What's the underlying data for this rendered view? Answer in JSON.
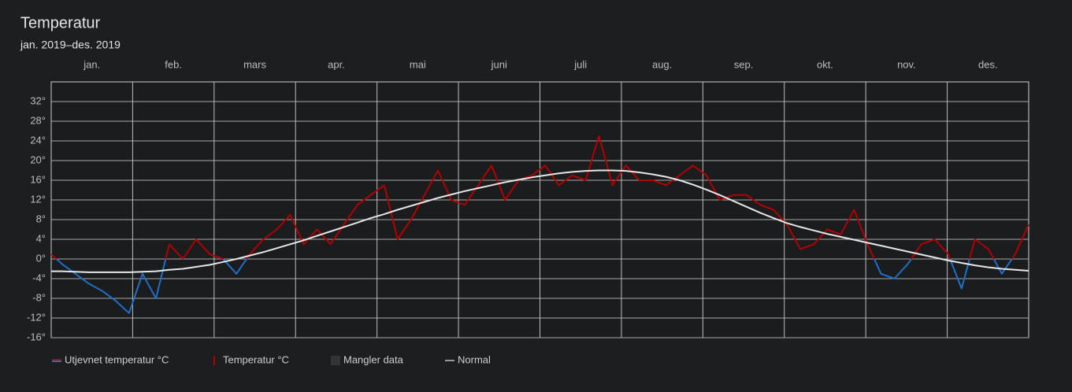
{
  "chart_data": {
    "type": "line",
    "title": "Temperatur",
    "subtitle": "jan. 2019–des. 2019",
    "categories": [
      "jan.",
      "feb.",
      "mars",
      "apr.",
      "mai",
      "juni",
      "juli",
      "aug.",
      "sep.",
      "okt.",
      "nov.",
      "des."
    ],
    "x": [
      1,
      5,
      10,
      15,
      20,
      25,
      30,
      35,
      40,
      45,
      50,
      55,
      60,
      65,
      70,
      75,
      80,
      85,
      90,
      95,
      100,
      105,
      110,
      115,
      120,
      125,
      130,
      135,
      140,
      145,
      150,
      155,
      160,
      165,
      170,
      175,
      180,
      185,
      190,
      195,
      200,
      205,
      210,
      215,
      220,
      225,
      230,
      235,
      240,
      245,
      250,
      255,
      260,
      265,
      270,
      275,
      280,
      285,
      290,
      295,
      300,
      305,
      310,
      315,
      320,
      325,
      330,
      335,
      340,
      345,
      350,
      355,
      360,
      365
    ],
    "xlim": [
      1,
      365
    ],
    "ylim": [
      -16,
      36
    ],
    "yticks": [
      {
        "value": -16,
        "label": "-16°"
      },
      {
        "value": -12,
        "label": "-12°"
      },
      {
        "value": -8,
        "label": "-8°"
      },
      {
        "value": -4,
        "label": "-4°"
      },
      {
        "value": 0,
        "label": "0°"
      },
      {
        "value": 4,
        "label": "4°"
      },
      {
        "value": 8,
        "label": "8°"
      },
      {
        "value": 12,
        "label": "12°"
      },
      {
        "value": 16,
        "label": "16°"
      },
      {
        "value": 20,
        "label": "20°"
      },
      {
        "value": 24,
        "label": "24°"
      },
      {
        "value": 28,
        "label": "28°"
      },
      {
        "value": 32,
        "label": "32°"
      }
    ],
    "grid": true,
    "series": [
      {
        "name": "Utjevnet temperatur °C",
        "color": "#b30000",
        "negative_color": "#1e6fc8",
        "values": [
          1,
          -1,
          -3,
          -5,
          -6.5,
          -8.5,
          -11,
          -3,
          -8,
          3,
          0,
          4,
          1,
          0,
          -3,
          1,
          4,
          6,
          9,
          3,
          6,
          3,
          7,
          11,
          13,
          15,
          4,
          8,
          13,
          18,
          12,
          11,
          15,
          19,
          12,
          16,
          17,
          19,
          15,
          17,
          16,
          25,
          15,
          19,
          16,
          16,
          15,
          17,
          19,
          17,
          12,
          13,
          13,
          11,
          10,
          7,
          2,
          3,
          6,
          5,
          10,
          3,
          -3,
          -4,
          -1,
          3,
          4,
          1,
          -6,
          4,
          2,
          -3,
          1,
          7
        ]
      },
      {
        "name": "Normal",
        "color": "#e6e6e6",
        "values": [
          -2.5,
          -2.5,
          -2.6,
          -2.7,
          -2.7,
          -2.7,
          -2.7,
          -2.6,
          -2.5,
          -2.2,
          -2,
          -1.6,
          -1.2,
          -0.6,
          0,
          0.7,
          1.4,
          2.2,
          3,
          3.8,
          4.7,
          5.6,
          6.5,
          7.4,
          8.3,
          9.1,
          10,
          10.8,
          11.6,
          12.4,
          13.1,
          13.8,
          14.4,
          15,
          15.6,
          16.1,
          16.6,
          17,
          17.4,
          17.7,
          17.9,
          18,
          18,
          17.9,
          17.6,
          17.2,
          16.7,
          16,
          15.1,
          14.1,
          13,
          11.8,
          10.6,
          9.4,
          8.3,
          7.3,
          6.5,
          5.8,
          5.1,
          4.5,
          3.9,
          3.3,
          2.7,
          2.1,
          1.5,
          0.9,
          0.3,
          -0.3,
          -0.8,
          -1.3,
          -1.7,
          -2,
          -2.2,
          -2.4
        ]
      }
    ],
    "legend": [
      "Utjevnet temperatur °C",
      "Temperatur °C",
      "Mangler data",
      "Normal"
    ]
  }
}
